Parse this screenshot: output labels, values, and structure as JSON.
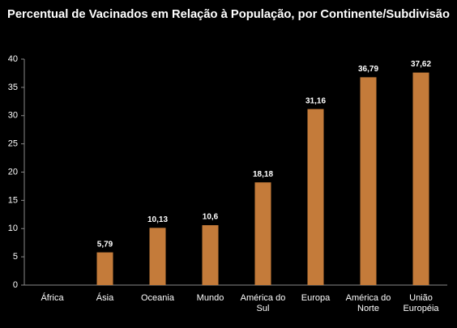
{
  "chart_data": {
    "type": "bar",
    "title": "Percentual de Vacinados em Relação à População, por Continente/Subdivisão",
    "categories": [
      "África",
      "Ásia",
      "Oceania",
      "Mundo",
      "América do Sul",
      "Europa",
      "América do Norte",
      "União Européia"
    ],
    "values": [
      null,
      5.79,
      10.13,
      10.6,
      18.18,
      31.16,
      36.79,
      37.62
    ],
    "value_labels": [
      null,
      "5,79",
      "10,13",
      "10,6",
      "18,18",
      "31,16",
      "36,79",
      "37,62"
    ],
    "color": "#c47b3a",
    "ylim": [
      0,
      40
    ],
    "yticks": [
      0,
      5,
      10,
      15,
      20,
      25,
      30,
      35,
      40
    ],
    "grid": false
  }
}
